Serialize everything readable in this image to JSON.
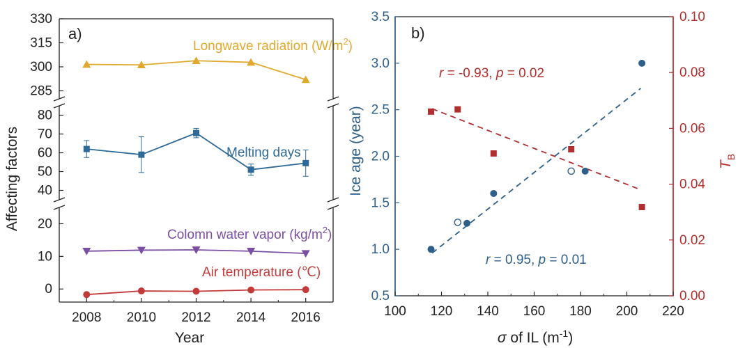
{
  "colors": {
    "longwave": "#E0A92E",
    "melting": "#2E6A97",
    "vapor": "#7A4FA3",
    "air": "#C23B3B",
    "ice": "#2E5F8A",
    "tb": "#B22E2E",
    "axis": "#222222"
  },
  "chart_data": [
    {
      "type": "line",
      "panel_label": "a)",
      "xlabel": "Year",
      "ylabel": "Affecting factors",
      "x_ticks": [
        "2008",
        "2010",
        "2012",
        "2014",
        "2016"
      ],
      "xlim": [
        2007,
        2017
      ],
      "segments": [
        {
          "ylim": [
            280,
            330
          ],
          "y_ticks": [
            "285",
            "300",
            "315",
            "330"
          ]
        },
        {
          "ylim": [
            35,
            85
          ],
          "y_ticks": [
            "40",
            "50",
            "60",
            "70",
            "80"
          ]
        },
        {
          "ylim": [
            -4,
            25
          ],
          "y_ticks": [
            "0",
            "10",
            "20"
          ]
        }
      ],
      "series": [
        {
          "name": "Longwave radiation (W/m",
          "name_sup": "2",
          "name_tail": ")",
          "marker": "triangle-up",
          "segment": 0,
          "x": [
            2008,
            2010,
            2012,
            2014,
            2016
          ],
          "y": [
            301.5,
            301.2,
            303.8,
            302.8,
            292.0
          ]
        },
        {
          "name": "Melting days",
          "marker": "square",
          "segment": 1,
          "x": [
            2008,
            2010,
            2012,
            2014,
            2016
          ],
          "y": [
            62,
            59,
            70.5,
            51,
            54.5
          ],
          "err_low": [
            4.5,
            9.5,
            2.5,
            3,
            7
          ],
          "err_high": [
            4.5,
            9.5,
            2.5,
            3,
            7
          ]
        },
        {
          "name": "Colomn water vapor (kg/m",
          "name_sup": "2",
          "name_tail": ")",
          "marker": "triangle-down",
          "segment": 2,
          "x": [
            2008,
            2010,
            2012,
            2014,
            2016
          ],
          "y": [
            11.6,
            11.9,
            12.0,
            11.6,
            10.9
          ]
        },
        {
          "name": "Air temperature (℃)",
          "marker": "circle",
          "segment": 2,
          "x": [
            2008,
            2010,
            2012,
            2014,
            2016
          ],
          "y": [
            -1.7,
            -0.6,
            -0.7,
            -0.3,
            -0.2
          ]
        }
      ]
    },
    {
      "type": "scatter",
      "panel_label": "b)",
      "xlabel_sigma": "σ",
      "xlabel": " of IL (m",
      "xlabel_sup": "-1",
      "xlabel_tail": ")",
      "ylabel": "Ice age (year)",
      "y2label": "T",
      "y2label_sub": "B",
      "xlim": [
        100,
        220
      ],
      "ylim": [
        0.5,
        3.5
      ],
      "y2lim": [
        0.0,
        0.1
      ],
      "x_ticks": [
        "100",
        "120",
        "140",
        "160",
        "180",
        "200",
        "220"
      ],
      "y_ticks": [
        "0.5",
        "1.0",
        "1.5",
        "2.0",
        "2.5",
        "3.0",
        "3.5"
      ],
      "y2_ticks": [
        "0.00",
        "0.02",
        "0.04",
        "0.06",
        "0.08",
        "0.10"
      ],
      "series": [
        {
          "marker": "circle-filled",
          "axis": "left",
          "x": [
            115.5,
            131,
            142.5,
            182,
            206.5
          ],
          "y": [
            1.0,
            1.28,
            1.6,
            1.84,
            3.0
          ]
        },
        {
          "marker": "circle-open",
          "axis": "left",
          "x": [
            127,
            176
          ],
          "y": [
            1.29,
            1.84
          ]
        },
        {
          "marker": "square-filled",
          "axis": "right",
          "x": [
            115.5,
            127,
            142.5,
            176,
            206.5
          ],
          "y": [
            0.066,
            0.0668,
            0.051,
            0.0525,
            0.0318
          ]
        }
      ],
      "fits": [
        {
          "axis": "left",
          "x": [
            116,
            206
          ],
          "y": [
            0.96,
            2.73
          ]
        },
        {
          "axis": "right",
          "x": [
            116,
            206
          ],
          "y": [
            0.067,
            0.038
          ]
        }
      ],
      "annotations": [
        {
          "italic": "r",
          "text": " = -0.93, ",
          "italic2": "p",
          "text2": " = 0.02"
        },
        {
          "italic": "r",
          "text": " = 0.95, ",
          "italic2": "p",
          "text2": " = 0.01"
        }
      ]
    }
  ]
}
